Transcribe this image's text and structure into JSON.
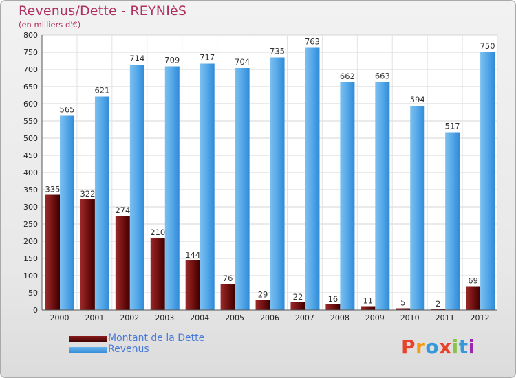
{
  "title": "Revenus/Dette - REYNIèS",
  "subtitle": "(en milliers d'€)",
  "logo": "Proxiti",
  "colors": {
    "debt_top": "#8b1c1c",
    "debt_bottom": "#3d0000",
    "revenue_top": "#6bb5ec",
    "revenue_bottom": "#2f8ad8",
    "title": "#b03060",
    "legend_text": "#4a7ad8"
  },
  "chart_data": {
    "type": "bar",
    "title": "Revenus/Dette - REYNIèS",
    "ylabel": "(en milliers d'€)",
    "xlabel": "",
    "ylim": [
      0,
      800
    ],
    "yticks": [
      0,
      50,
      100,
      150,
      200,
      250,
      300,
      350,
      400,
      450,
      500,
      550,
      600,
      650,
      700,
      750,
      800
    ],
    "grid": true,
    "legend_position": "bottom-left",
    "categories": [
      "2000",
      "2001",
      "2002",
      "2003",
      "2004",
      "2005",
      "2006",
      "2007",
      "2008",
      "2009",
      "2010",
      "2011",
      "2012"
    ],
    "series": [
      {
        "name": "Montant de la Dette",
        "values": [
          335,
          322,
          274,
          210,
          144,
          76,
          29,
          22,
          16,
          11,
          5,
          2,
          69
        ]
      },
      {
        "name": "Revenus",
        "values": [
          565,
          621,
          714,
          709,
          717,
          704,
          735,
          763,
          662,
          663,
          594,
          517,
          750
        ]
      }
    ]
  }
}
